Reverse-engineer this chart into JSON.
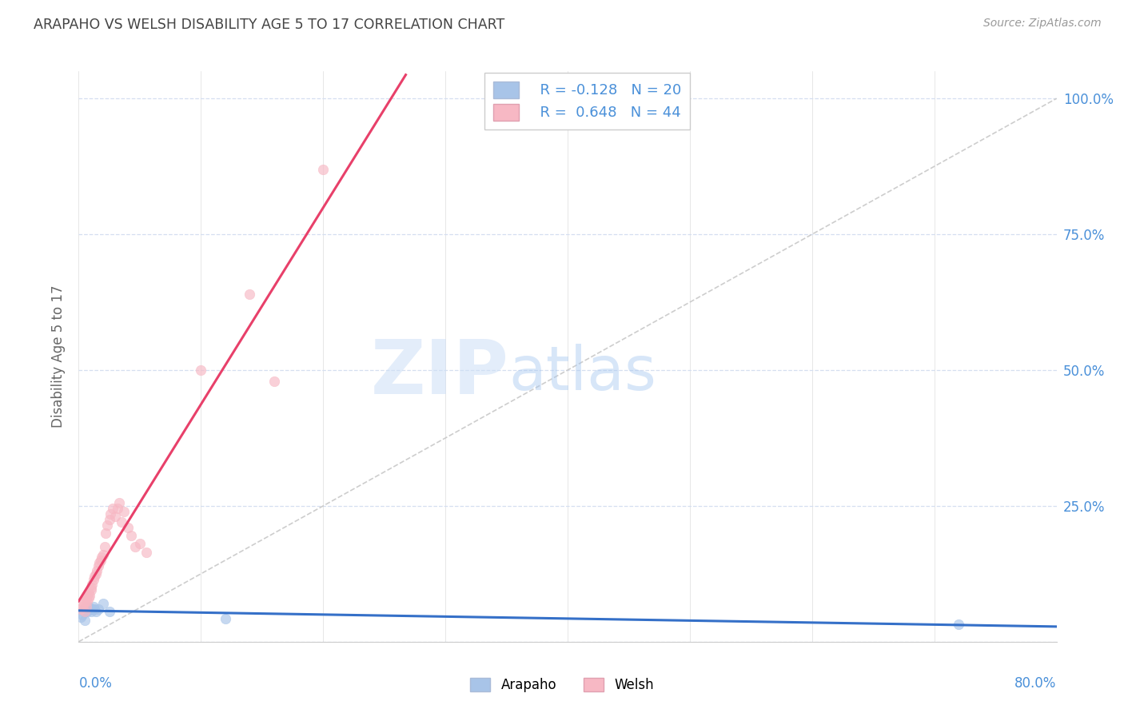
{
  "title": "ARAPAHO VS WELSH DISABILITY AGE 5 TO 17 CORRELATION CHART",
  "source": "Source: ZipAtlas.com",
  "ylabel": "Disability Age 5 to 17",
  "xlim": [
    0.0,
    0.8
  ],
  "ylim": [
    0.0,
    1.05
  ],
  "yticks": [
    0.0,
    0.25,
    0.5,
    0.75,
    1.0
  ],
  "ytick_labels": [
    "",
    "25.0%",
    "50.0%",
    "75.0%",
    "100.0%"
  ],
  "arapaho_color": "#a8c4e8",
  "welsh_color": "#f7b8c4",
  "arapaho_line_color": "#3570c8",
  "welsh_line_color": "#e8406a",
  "ref_line_color": "#c8c8c8",
  "legend_R_arapaho": "R = -0.128",
  "legend_N_arapaho": "N = 20",
  "legend_R_welsh": "R =  0.648",
  "legend_N_welsh": "N = 44",
  "arapaho_x": [
    0.002,
    0.003,
    0.004,
    0.005,
    0.005,
    0.006,
    0.007,
    0.007,
    0.008,
    0.009,
    0.01,
    0.011,
    0.012,
    0.013,
    0.014,
    0.016,
    0.02,
    0.025,
    0.12,
    0.72
  ],
  "arapaho_y": [
    0.045,
    0.05,
    0.06,
    0.055,
    0.04,
    0.065,
    0.06,
    0.055,
    0.065,
    0.06,
    0.055,
    0.06,
    0.065,
    0.06,
    0.055,
    0.06,
    0.07,
    0.055,
    0.042,
    0.032
  ],
  "welsh_x": [
    0.002,
    0.003,
    0.004,
    0.005,
    0.005,
    0.006,
    0.006,
    0.007,
    0.007,
    0.008,
    0.008,
    0.009,
    0.01,
    0.01,
    0.011,
    0.012,
    0.013,
    0.014,
    0.015,
    0.016,
    0.017,
    0.018,
    0.019,
    0.02,
    0.021,
    0.022,
    0.023,
    0.025,
    0.026,
    0.028,
    0.03,
    0.032,
    0.033,
    0.035,
    0.037,
    0.04,
    0.043,
    0.046,
    0.05,
    0.055,
    0.1,
    0.14,
    0.16,
    0.2
  ],
  "welsh_y": [
    0.06,
    0.065,
    0.07,
    0.075,
    0.055,
    0.065,
    0.08,
    0.075,
    0.085,
    0.08,
    0.09,
    0.085,
    0.095,
    0.1,
    0.105,
    0.115,
    0.12,
    0.125,
    0.13,
    0.14,
    0.145,
    0.15,
    0.155,
    0.16,
    0.175,
    0.2,
    0.215,
    0.225,
    0.235,
    0.245,
    0.23,
    0.245,
    0.255,
    0.22,
    0.24,
    0.21,
    0.195,
    0.175,
    0.18,
    0.165,
    0.5,
    0.64,
    0.48,
    0.87
  ],
  "watermark_zip": "ZIP",
  "watermark_atlas": "atlas",
  "background_color": "#ffffff",
  "grid_color": "#d5dff0",
  "tick_color": "#4a90d9",
  "title_color": "#444444",
  "marker_size": 80,
  "marker_alpha": 0.65
}
